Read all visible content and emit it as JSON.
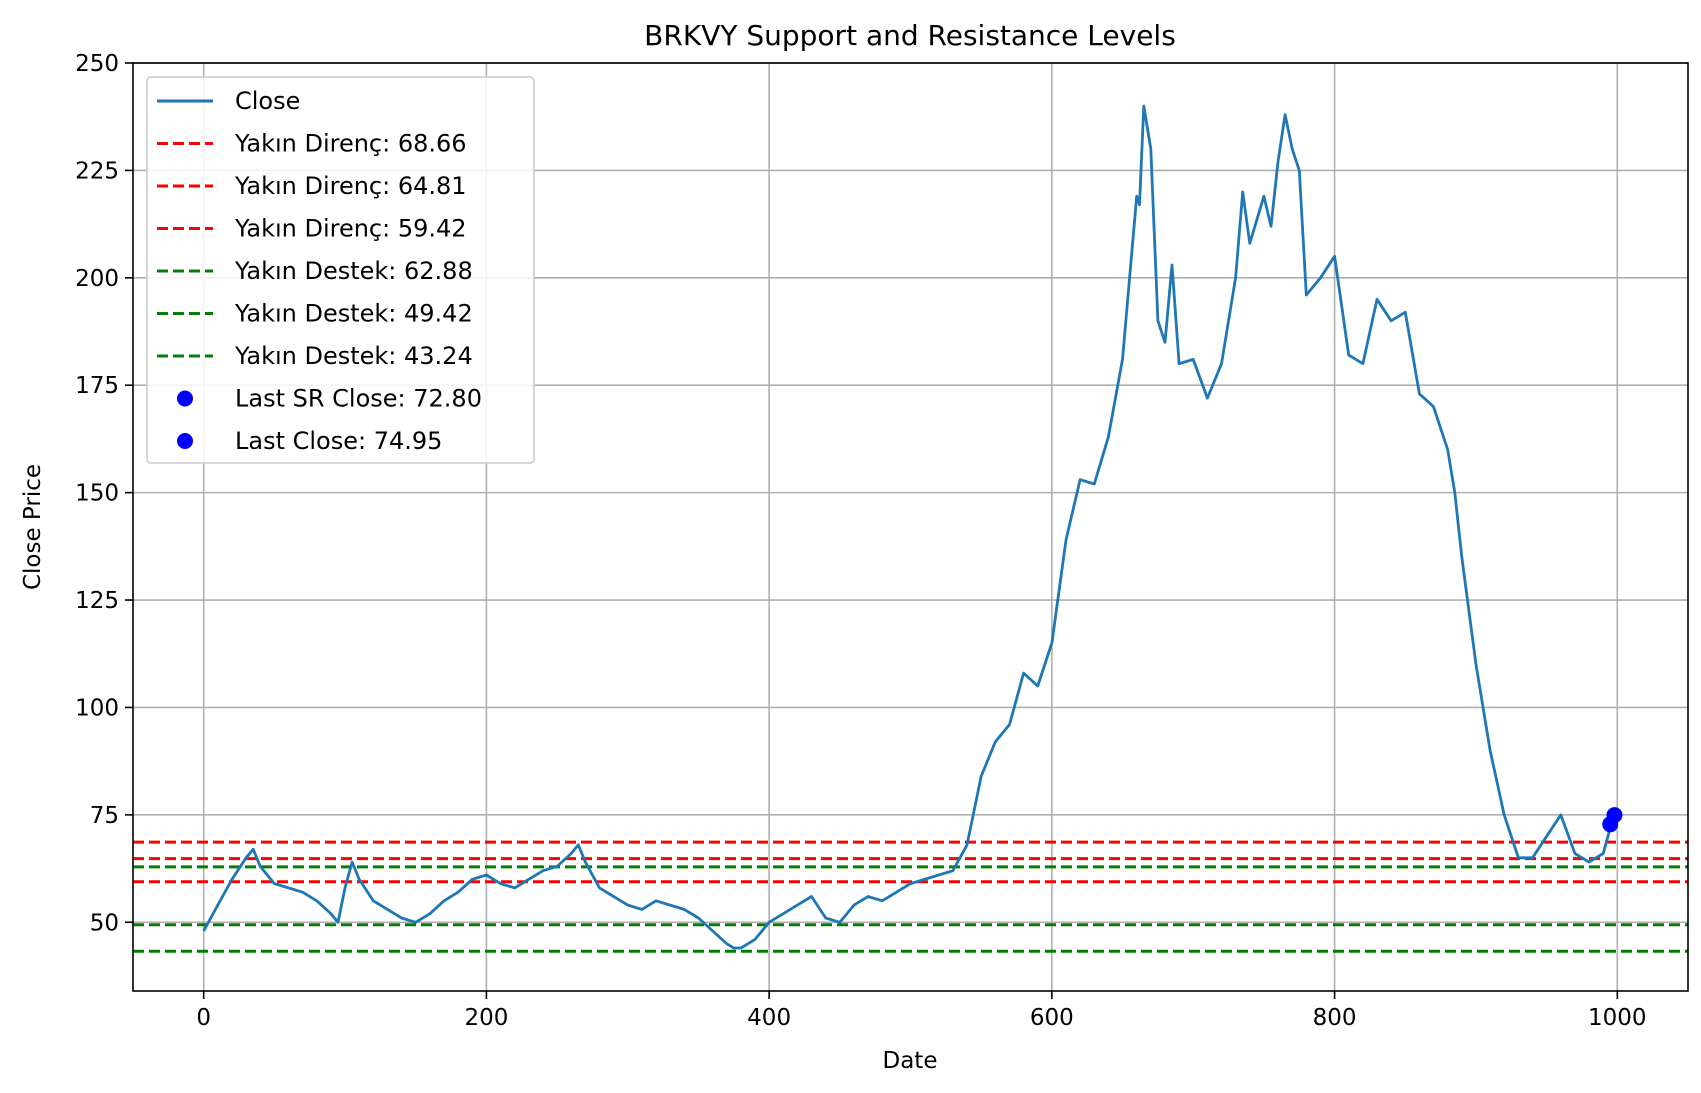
{
  "chart_data": {
    "type": "line",
    "title": "BRKVY Support and Resistance Levels",
    "xlabel": "Date",
    "ylabel": "Close Price",
    "xlim": [
      -50,
      1050
    ],
    "ylim": [
      34,
      250
    ],
    "xticks": [
      0,
      200,
      400,
      600,
      800,
      1000
    ],
    "yticks": [
      50,
      75,
      100,
      125,
      150,
      175,
      200,
      225,
      250
    ],
    "grid": true,
    "legend_position": "upper-left",
    "colors": {
      "close": "#1f77b4",
      "resistance": "#ff0000",
      "support": "#008000",
      "marker": "#0000ff"
    },
    "series": [
      {
        "name": "Close",
        "x": [
          0,
          10,
          20,
          30,
          35,
          40,
          50,
          60,
          70,
          80,
          90,
          95,
          100,
          105,
          110,
          120,
          130,
          140,
          150,
          160,
          170,
          180,
          190,
          200,
          210,
          220,
          230,
          240,
          250,
          260,
          265,
          270,
          280,
          290,
          300,
          310,
          320,
          330,
          340,
          350,
          360,
          370,
          375,
          380,
          390,
          400,
          410,
          420,
          430,
          440,
          450,
          460,
          470,
          480,
          490,
          500,
          510,
          520,
          530,
          540,
          545,
          550,
          560,
          570,
          580,
          590,
          600,
          610,
          620,
          630,
          640,
          650,
          655,
          660,
          662,
          665,
          670,
          675,
          680,
          685,
          690,
          700,
          710,
          720,
          730,
          735,
          740,
          750,
          755,
          760,
          765,
          770,
          775,
          780,
          790,
          800,
          810,
          820,
          830,
          840,
          850,
          860,
          870,
          880,
          885,
          890,
          900,
          910,
          920,
          930,
          940,
          950,
          960,
          970,
          980,
          990,
          995,
          998
        ],
        "y": [
          48,
          54,
          60,
          65,
          67,
          63,
          59,
          58,
          57,
          55,
          52,
          50,
          58,
          64,
          60,
          55,
          53,
          51,
          50,
          52,
          55,
          57,
          60,
          61,
          59,
          58,
          60,
          62,
          63,
          66,
          68,
          64,
          58,
          56,
          54,
          53,
          55,
          54,
          53,
          51,
          48,
          45,
          44,
          44,
          46,
          50,
          52,
          54,
          56,
          51,
          50,
          54,
          56,
          55,
          57,
          59,
          60,
          61,
          62,
          68,
          76,
          84,
          92,
          96,
          108,
          105,
          115,
          139,
          153,
          152,
          163,
          181,
          200,
          219,
          217,
          240,
          230,
          190,
          185,
          203,
          180,
          181,
          172,
          180,
          200,
          220,
          208,
          219,
          212,
          227,
          238,
          230,
          225,
          196,
          200,
          205,
          182,
          180,
          195,
          190,
          192,
          173,
          170,
          160,
          150,
          135,
          110,
          90,
          75,
          65,
          65,
          70,
          75,
          66,
          64,
          66,
          72,
          75
        ]
      }
    ],
    "hlines": [
      {
        "name": "Yakın Direnç: 68.66",
        "value": 68.66,
        "kind": "resistance"
      },
      {
        "name": "Yakın Direnç: 64.81",
        "value": 64.81,
        "kind": "resistance"
      },
      {
        "name": "Yakın Direnç: 59.42",
        "value": 59.42,
        "kind": "resistance"
      },
      {
        "name": "Yakın Destek: 62.88",
        "value": 62.88,
        "kind": "support"
      },
      {
        "name": "Yakın Destek: 49.42",
        "value": 49.42,
        "kind": "support"
      },
      {
        "name": "Yakın Destek: 43.24",
        "value": 43.24,
        "kind": "support"
      }
    ],
    "points": [
      {
        "name": "Last SR Close: 72.80",
        "x": 995,
        "y": 72.8
      },
      {
        "name": "Last Close: 74.95",
        "x": 998,
        "y": 74.95
      }
    ]
  }
}
